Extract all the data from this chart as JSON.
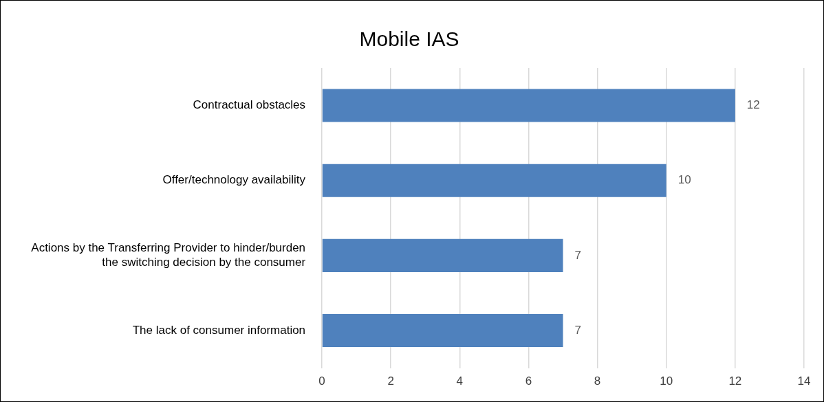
{
  "chart_data": {
    "type": "bar",
    "orientation": "horizontal",
    "title": "Mobile IAS",
    "categories": [
      "Contractual obstacles",
      "Offer/technology availability",
      "Actions by the Transferring Provider to hinder/burden the switching decision by the consumer",
      "The lack of consumer information"
    ],
    "values": [
      12,
      10,
      7,
      7
    ],
    "color": "#4f81bd",
    "xlim": [
      0,
      14
    ],
    "xticks": [
      0,
      2,
      4,
      6,
      8,
      10,
      12,
      14
    ],
    "grid": "x",
    "legend": false,
    "data_labels": true
  }
}
